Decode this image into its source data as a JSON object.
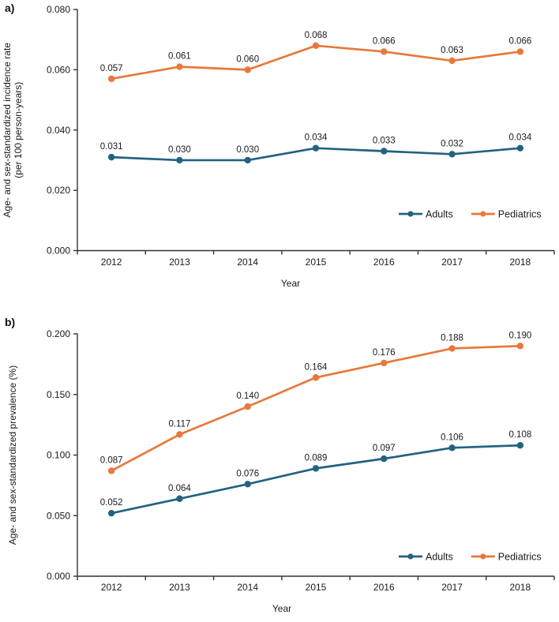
{
  "figure": {
    "background": "#ffffff",
    "axis_color": "#333333",
    "text_color": "#1a1a1a"
  },
  "chart_data": [
    {
      "type": "line",
      "panel_label": "a)",
      "xlabel": "Year",
      "ylabel": "Age- and sex-standardized incidence rate (per 100 person-years)",
      "ylabel_lines": [
        "Age- and sex-standardized incidence rate",
        "(per 100 person-years)"
      ],
      "categories": [
        "2012",
        "2013",
        "2014",
        "2015",
        "2016",
        "2017",
        "2018"
      ],
      "series": [
        {
          "name": "Adults",
          "color": "#226380",
          "values": [
            0.031,
            0.03,
            0.03,
            0.034,
            0.033,
            0.032,
            0.034
          ]
        },
        {
          "name": "Pediatrics",
          "color": "#E8783C",
          "values": [
            0.057,
            0.061,
            0.06,
            0.068,
            0.066,
            0.063,
            0.066
          ]
        }
      ],
      "ylim": [
        0,
        0.08
      ],
      "ytick_step": 0.02,
      "tick_decimals": 3,
      "value_label_decimals": 3,
      "grid": false,
      "legend_position": "inside-bottom-right",
      "markers": "point",
      "data_labels": true
    },
    {
      "type": "line",
      "panel_label": "b)",
      "xlabel": "Year",
      "ylabel": "Age- and sex-standardized prevalence (%)",
      "ylabel_lines": [
        "Age- and sex-standardized prevalence (%)"
      ],
      "categories": [
        "2012",
        "2013",
        "2014",
        "2015",
        "2016",
        "2017",
        "2018"
      ],
      "series": [
        {
          "name": "Adults",
          "color": "#226380",
          "values": [
            0.052,
            0.064,
            0.076,
            0.089,
            0.097,
            0.106,
            0.108
          ]
        },
        {
          "name": "Pediatrics",
          "color": "#E8783C",
          "values": [
            0.087,
            0.117,
            0.14,
            0.164,
            0.176,
            0.188,
            0.19
          ]
        }
      ],
      "ylim": [
        0,
        0.2
      ],
      "ytick_step": 0.05,
      "tick_decimals": 3,
      "value_label_decimals": 3,
      "grid": false,
      "legend_position": "inside-bottom-right",
      "markers": "point",
      "data_labels": true
    }
  ]
}
